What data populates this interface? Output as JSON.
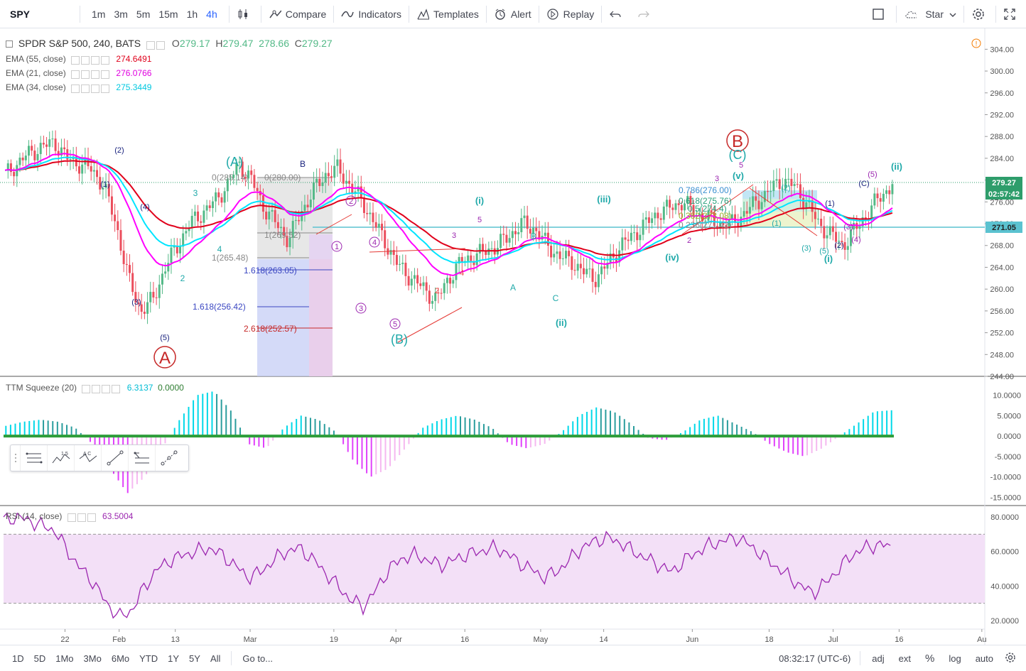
{
  "toolbar": {
    "symbol": "SPY",
    "intervals": [
      "1m",
      "3m",
      "5m",
      "15m",
      "1h",
      "4h"
    ],
    "active_interval": "4h",
    "compare": "Compare",
    "indicators": "Indicators",
    "templates": "Templates",
    "alert": "Alert",
    "replay": "Replay",
    "layout": "Star"
  },
  "legend": {
    "title": "SPDR S&P 500, 240, BATS",
    "o_label": "O",
    "o": "279.17",
    "h_label": "H",
    "h": "279.47",
    "l": "278.66",
    "c_label": "C",
    "c": "279.27",
    "ema55_name": "EMA (55, close)",
    "ema55": "274.6491",
    "ema21_name": "EMA (21, close)",
    "ema21": "276.0766",
    "ema34_name": "EMA (34, close)",
    "ema34": "275.3449",
    "ttm_name": "TTM Squeeze (20)",
    "ttm_val": "6.3137",
    "ttm_val2": "0.0000",
    "rsi_name": "RSI (14, close)",
    "rsi_val": "63.5004"
  },
  "colors": {
    "up": "#53b987",
    "down": "#eb4d5c",
    "ema55": "#e0001b",
    "ema21": "#ff00ff",
    "ema34": "#00e5ff",
    "wave_teal": "#1fa9a9",
    "wave_purple": "#9c27b0",
    "wave_navy": "#1a237e",
    "wave_red": "#c62828",
    "hline": "#5bc2d0",
    "rsi_line": "#9c27b0",
    "rsi_band": "#f3e0f7"
  },
  "price_axis": {
    "ticks": [
      "304.00",
      "300.00",
      "296.00",
      "292.00",
      "288.00",
      "284.00",
      "280.00",
      "276.00",
      "272.00",
      "268.00",
      "264.00",
      "260.00",
      "256.00",
      "252.00",
      "248.00",
      "244.00"
    ],
    "last_price": "279.27",
    "countdown": "02:57:42",
    "line_price": "271.05"
  },
  "ttm_axis": {
    "ticks": [
      "10.0000",
      "5.0000",
      "0.0000",
      "-5.0000",
      "-10.0000",
      "-15.0000"
    ]
  },
  "rsi_axis": {
    "ticks": [
      "80.0000",
      "60.0000",
      "40.0000",
      "20.0000"
    ]
  },
  "time_axis": {
    "ticks": [
      "22",
      "Feb",
      "13",
      "Mar",
      "19",
      "Apr",
      "16",
      "May",
      "14",
      "Jun",
      "18",
      "Jul",
      "16",
      "Au"
    ]
  },
  "fib_labels": {
    "a0": "0(285.14)",
    "a0b": "0(280.00)",
    "a1": "1(269.52)",
    "a2": "1(265.48)",
    "a3": "1.618(263.05)",
    "a4": "1.618(256.42)",
    "a5": "2.618(252.57)",
    "b1": "0.786(276.00)",
    "b2": "0.618(275.76)",
    "b3": "0.5(274.4)",
    "b4": "0.382(273.08)",
    "b5": "0.236(271.42)"
  },
  "waves": {
    "A_big": "A",
    "B_big": "B",
    "A_paren": "(A)",
    "B_paren": "(B)",
    "C_paren": "(C)",
    "i": "(i)",
    "ii": "(ii)",
    "iii": "(iii)",
    "iv": "(iv)",
    "v": "(v)",
    "ii_right": "(ii)",
    "i_right": "(i)",
    "n1": "(1)",
    "n2": "(2)",
    "n3": "(3)",
    "n4": "(4)",
    "n5": "(5)",
    "c1": "1",
    "c2": "2",
    "c3": "3",
    "c4": "4",
    "c5": "5",
    "la": "A",
    "lb": "B",
    "lc": "C"
  },
  "bottom": {
    "ranges": [
      "1D",
      "5D",
      "1Mo",
      "3Mo",
      "6Mo",
      "YTD",
      "1Y",
      "5Y",
      "All"
    ],
    "goto": "Go to...",
    "time": "08:32:17 (UTC-6)",
    "adj": "adj",
    "ext": "ext",
    "pct": "%",
    "log": "log",
    "auto": "auto"
  },
  "drawing_toolbar": {
    "labels": [
      "1 5",
      "A C"
    ]
  },
  "chart_data": {
    "type": "candlestick",
    "symbol": "SPDR S&P 500, 240, BATS",
    "last": 279.27,
    "ylim": [
      244,
      306
    ],
    "ema55_last": 274.6491,
    "ema21_last": 276.0766,
    "ema34_last": 275.3449,
    "close_path": [
      281,
      283,
      285,
      286,
      287,
      284,
      283,
      282,
      279,
      272,
      262,
      256,
      258,
      264,
      268,
      272,
      274,
      276,
      279,
      283,
      280,
      275,
      272,
      269,
      274,
      278,
      281,
      282,
      279,
      276,
      272,
      268,
      264,
      262,
      260,
      258,
      262,
      265,
      266,
      267,
      268,
      270,
      272,
      271,
      268,
      266,
      265,
      263,
      262,
      265,
      268,
      270,
      272,
      274,
      275,
      276,
      274,
      273,
      272,
      272,
      274,
      276,
      278,
      280,
      279,
      276,
      272,
      270,
      268,
      271,
      274,
      277,
      279
    ],
    "rsi_path": [
      78,
      80,
      78,
      75,
      72,
      60,
      50,
      42,
      30,
      22,
      26,
      40,
      50,
      55,
      58,
      60,
      62,
      58,
      52,
      45,
      48,
      55,
      60,
      62,
      56,
      48,
      40,
      32,
      28,
      38,
      50,
      56,
      58,
      55,
      52,
      55,
      58,
      60,
      62,
      60,
      54,
      50,
      45,
      48,
      55,
      62,
      66,
      68,
      65,
      60,
      56,
      52,
      48,
      55,
      60,
      64,
      66,
      68,
      64,
      58,
      52,
      46,
      40,
      36,
      42,
      50,
      58,
      62,
      64,
      63
    ],
    "ttm_path": [
      2.5,
      3.5,
      4,
      3.5,
      2,
      -2,
      -8,
      -14,
      -10,
      -3,
      4,
      10,
      11,
      6,
      -2,
      -3,
      2,
      5,
      4,
      1,
      -6,
      -10,
      -8,
      -3,
      2,
      4,
      5,
      4,
      2,
      -2,
      -3,
      -2,
      1,
      5,
      7,
      6,
      3,
      -0.5,
      -1,
      1,
      4,
      5,
      3,
      1,
      -2,
      -4,
      -5,
      -3,
      0,
      3,
      6,
      6.3
    ]
  }
}
